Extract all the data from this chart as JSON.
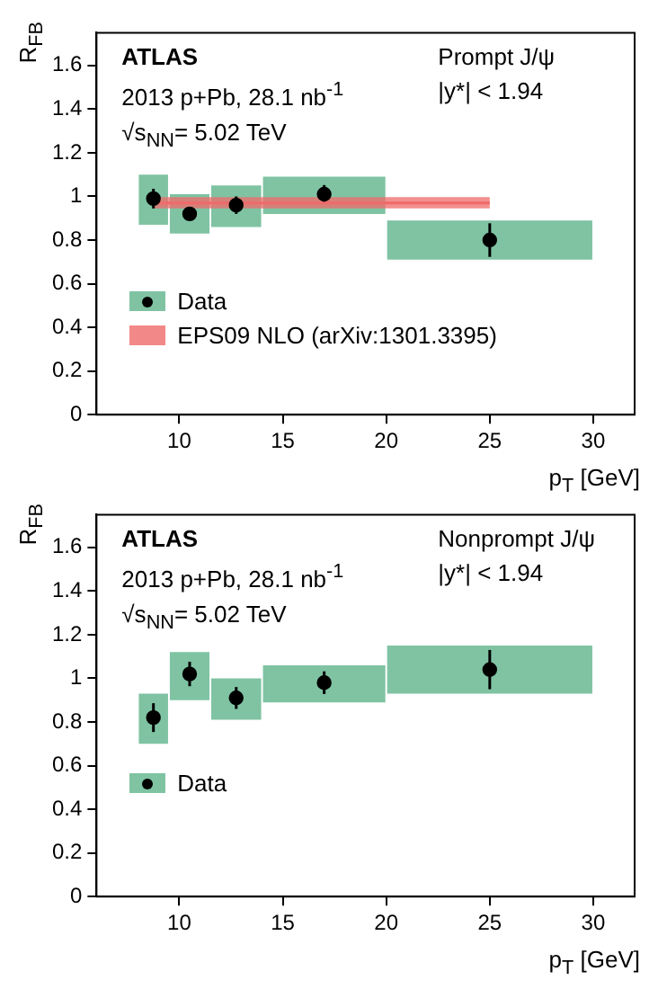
{
  "chart_data": [
    {
      "type": "scatter",
      "xlabel": "p$_{T}$ [GeV]",
      "ylabel": "R$_{FB}$",
      "xlim": [
        6,
        32
      ],
      "xticks": [
        10,
        15,
        20,
        25,
        30
      ],
      "ylim": [
        0,
        1.75
      ],
      "yticks": [
        0,
        0.2,
        0.4,
        0.6,
        0.8,
        1,
        1.2,
        1.4,
        1.6
      ],
      "grid": false,
      "legend": "left",
      "marker": "circle",
      "annotations": [
        "ATLAS",
        "2013 p+Pb, 28.1 nb$^{-1}$",
        "√s$_{NN}$= 5.02 TeV",
        "Prompt J/ψ",
        "|y*| < 1.94"
      ],
      "series": [
        {
          "type": "histogram",
          "color": "#7fc3a3",
          "bins": [
            8,
            9.5,
            11.5,
            14,
            20,
            30
          ],
          "base": [
            0.87,
            0.83,
            0.86,
            0.92,
            0.71
          ],
          "values": [
            0.23,
            0.18,
            0.19,
            0.17,
            0.18
          ]
        },
        {
          "name": "Data",
          "color": "#000000",
          "x": [
            8.75,
            10.5,
            12.75,
            17,
            25
          ],
          "values": [
            0.99,
            0.92,
            0.96,
            1.01,
            0.8
          ],
          "errors": [
            0.045,
            0.026,
            0.04,
            0.042,
            0.077
          ]
        },
        {
          "name": "EPS09 NLO (arXiv:1301.3395)",
          "type": "line",
          "marker": "none",
          "color": "#f06a6a",
          "x": [
            8.7,
            25
          ],
          "values": [
            0.97,
            0.97
          ],
          "lower": [
            0.945,
            0.945
          ],
          "upper": [
            0.997,
            0.997
          ]
        }
      ]
    },
    {
      "type": "scatter",
      "xlabel": "p$_{T}$ [GeV]",
      "ylabel": "R$_{FB}$",
      "xlim": [
        6,
        32
      ],
      "xticks": [
        10,
        15,
        20,
        25,
        30
      ],
      "ylim": [
        0,
        1.75
      ],
      "yticks": [
        0,
        0.2,
        0.4,
        0.6,
        0.8,
        1,
        1.2,
        1.4,
        1.6
      ],
      "grid": false,
      "legend": "left",
      "marker": "circle",
      "annotations": [
        "ATLAS",
        "2013 p+Pb, 28.1 nb$^{-1}$",
        "√s$_{NN}$= 5.02 TeV",
        "Nonprompt J/ψ",
        "|y*| < 1.94"
      ],
      "series": [
        {
          "type": "histogram",
          "color": "#7fc3a3",
          "bins": [
            8,
            9.5,
            11.5,
            14,
            20,
            30
          ],
          "base": [
            0.7,
            0.9,
            0.81,
            0.89,
            0.93
          ],
          "values": [
            0.23,
            0.22,
            0.19,
            0.17,
            0.22
          ]
        },
        {
          "name": "Data",
          "color": "#000000",
          "x": [
            8.75,
            10.5,
            12.75,
            17,
            25
          ],
          "values": [
            0.82,
            1.02,
            0.91,
            0.98,
            1.04
          ],
          "errors": [
            0.066,
            0.056,
            0.05,
            0.052,
            0.09
          ]
        }
      ]
    }
  ]
}
